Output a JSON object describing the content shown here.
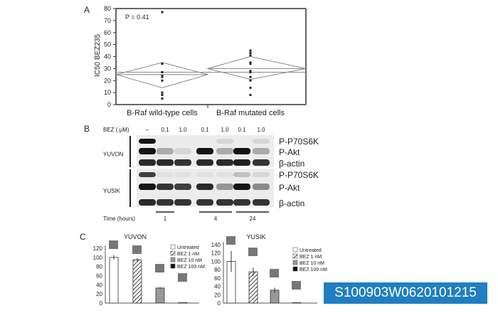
{
  "panelA": {
    "letter": "A",
    "ylabel": "IC50 BEZ235",
    "ylabel_main": "IC",
    "ylabel_sub": "50",
    "ylabel_rest": " BEZ235",
    "pvalue": "P = 0.41",
    "chart_data": {
      "type": "scatter",
      "ylim": [
        0,
        80
      ],
      "yticks": [
        0,
        10,
        20,
        30,
        40,
        50,
        60,
        70,
        80
      ],
      "categories": [
        "B-Raf wild-type cells",
        "B-Raf mutated cells"
      ],
      "series": [
        {
          "values": [
            77,
            34,
            27,
            24,
            23,
            20,
            10,
            8,
            5
          ],
          "mean": 25,
          "ci": [
            14,
            35
          ]
        },
        {
          "values": [
            45,
            43,
            41,
            35,
            34,
            28,
            27,
            23,
            20,
            14,
            8
          ],
          "mean": 30,
          "ci": [
            21,
            40
          ]
        }
      ],
      "grand_mean": 27
    }
  },
  "panelB": {
    "letter": "B",
    "bez_label": "BEZ ( μM)",
    "lanes": [
      "–",
      "0.1",
      "1.0",
      "0.1",
      "1.0",
      "0.1",
      "1.0"
    ],
    "cell_lines": [
      "YUVON",
      "YUSIK"
    ],
    "proteins": [
      "P-P70S6K",
      "P-Akt",
      "β-actin"
    ],
    "time_label": "Time (hours)",
    "times": [
      "1",
      "4",
      "24"
    ],
    "band_intensity": {
      "YUVON": [
        [
          1,
          0,
          0,
          0,
          0.1,
          0,
          0.1
        ],
        [
          1,
          0.3,
          0.1,
          1,
          0.3,
          1,
          0.3
        ],
        [
          0.9,
          0.9,
          0.85,
          0.9,
          0.9,
          0.95,
          0.85
        ]
      ],
      "YUSIK": [
        [
          0.8,
          0.05,
          0.05,
          0.05,
          0.05,
          0.2,
          0.1
        ],
        [
          1,
          0.85,
          0.8,
          0.9,
          0.4,
          1,
          0.45
        ],
        [
          0.9,
          0.85,
          0.85,
          0.85,
          0.85,
          0.85,
          0.85
        ]
      ]
    }
  },
  "panelC": {
    "letter": "C",
    "chart_data": [
      {
        "type": "bar",
        "title": "YUVON",
        "ylim": [
          0,
          120
        ],
        "yticks": [
          0,
          20,
          40,
          60,
          80,
          100,
          120
        ],
        "categories": [
          "Untreated",
          "BEZ 1 nM",
          "BEZ 10 nM",
          "BEZ 100 nM"
        ],
        "values": [
          100,
          95,
          33,
          1
        ],
        "errors": [
          5,
          4,
          2,
          0.5
        ],
        "legend": "right"
      },
      {
        "type": "bar",
        "title": "YUSIK",
        "ylim": [
          0,
          140
        ],
        "yticks": [
          0,
          20,
          40,
          60,
          80,
          100,
          120,
          140
        ],
        "categories": [
          "Untreated",
          "BEZ 1 nM",
          "BEZ 10 nM",
          "BEZ 100 nM"
        ],
        "values": [
          100,
          75,
          31,
          1
        ],
        "errors": [
          25,
          10,
          6,
          0.5
        ],
        "legend": "right"
      }
    ]
  },
  "catalog_id": "S100903W0620101215"
}
